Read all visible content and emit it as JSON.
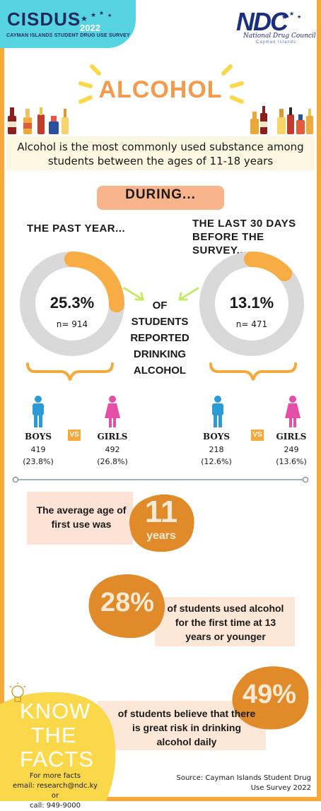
{
  "header": {
    "brand_name": "CISDUS",
    "brand_year": "2022",
    "brand_subtitle": "CAYMAN ISLANDS STUDENT DRUG USE SURVEY",
    "logo_text": "NDC",
    "logo_subtitle": "National Drug Council",
    "logo_location": "Cayman Islands"
  },
  "title": "ALCOHOL",
  "intro": "Alcohol is the most commonly used substance among students between the ages of 11-18 years",
  "during": "DURING...",
  "center_text": [
    "OF",
    "STUDENTS",
    "REPORTED",
    "DRINKING",
    "ALCOHOL"
  ],
  "past_year": {
    "header": "THE PAST YEAR...",
    "percent_label": "25.3%",
    "percent": 25.3,
    "n": "n= 914",
    "boys": {
      "label": "BOYS",
      "count": "419",
      "pct": "(23.8%)"
    },
    "girls": {
      "label": "GIRLS",
      "count": "492",
      "pct": "(26.8%)"
    }
  },
  "last_30_days": {
    "header": "THE LAST 30 DAYS BEFORE THE SURVEY...",
    "percent_label": "13.1%",
    "percent": 13.1,
    "n": "n= 471",
    "boys": {
      "label": "BOYS",
      "count": "218",
      "pct": "(12.6%)"
    },
    "girls": {
      "label": "GIRLS",
      "count": "249",
      "pct": "(13.6%)"
    }
  },
  "vs": "VS",
  "first_use": {
    "text": "The average age of first use was",
    "number": "11",
    "unit": "years"
  },
  "facts": [
    {
      "number": "28%",
      "text": "of students used alcohol for the first time at 13 years or younger"
    },
    {
      "number": "49%",
      "text": "of students believe that there is great risk in drinking alcohol daily"
    }
  ],
  "know_the_facts": [
    "KNOW",
    "THE",
    "FACTS"
  ],
  "more_facts": [
    "For more facts",
    "email: research@ndc.ky or",
    "call: 949-9000"
  ],
  "source": "Source: Cayman Islands Student Drug Use Survey 2022",
  "colors": {
    "border": "#f4a93a",
    "donut_track": "#d9d9d9",
    "donut_fill": "#f7ad43",
    "boy": "#2c9ad6",
    "girl": "#e64fa7",
    "blob": "#e08a2a",
    "yellow": "#fbd84a",
    "brand": "#57d4e2"
  }
}
